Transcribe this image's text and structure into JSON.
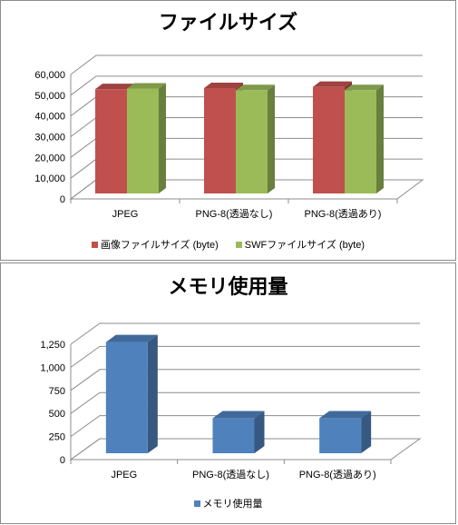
{
  "chart_data": [
    {
      "type": "bar",
      "title": "ファイルサイズ",
      "categories": [
        "JPEG",
        "PNG-8(透過なし)",
        "PNG-8(透過あり)"
      ],
      "series": [
        {
          "name": "画像ファイルサイズ (byte)",
          "values": [
            50300,
            50800,
            51400
          ],
          "color": "#c0504d"
        },
        {
          "name": "SWFファイルサイズ (byte)",
          "values": [
            50600,
            49800,
            49800
          ],
          "color": "#9bbb59"
        }
      ],
      "ylim": [
        0,
        60000
      ],
      "y_ticks": [
        "0",
        "10,000",
        "20,000",
        "30,000",
        "40,000",
        "50,000",
        "60,000"
      ],
      "grid": true,
      "style": "3d-column",
      "legend_position": "bottom"
    },
    {
      "type": "bar",
      "title": "メモリ使用量",
      "categories": [
        "JPEG",
        "PNG-8(透過なし)",
        "PNG-8(透過あり)"
      ],
      "series": [
        {
          "name": "メモリ使用量",
          "values": [
            1205,
            380,
            380
          ],
          "color": "#4f81bd"
        }
      ],
      "ylim": [
        0,
        1250
      ],
      "y_ticks": [
        "0",
        "250",
        "500",
        "750",
        "1,000",
        "1,250"
      ],
      "grid": true,
      "style": "3d-column",
      "legend_position": "bottom"
    }
  ]
}
